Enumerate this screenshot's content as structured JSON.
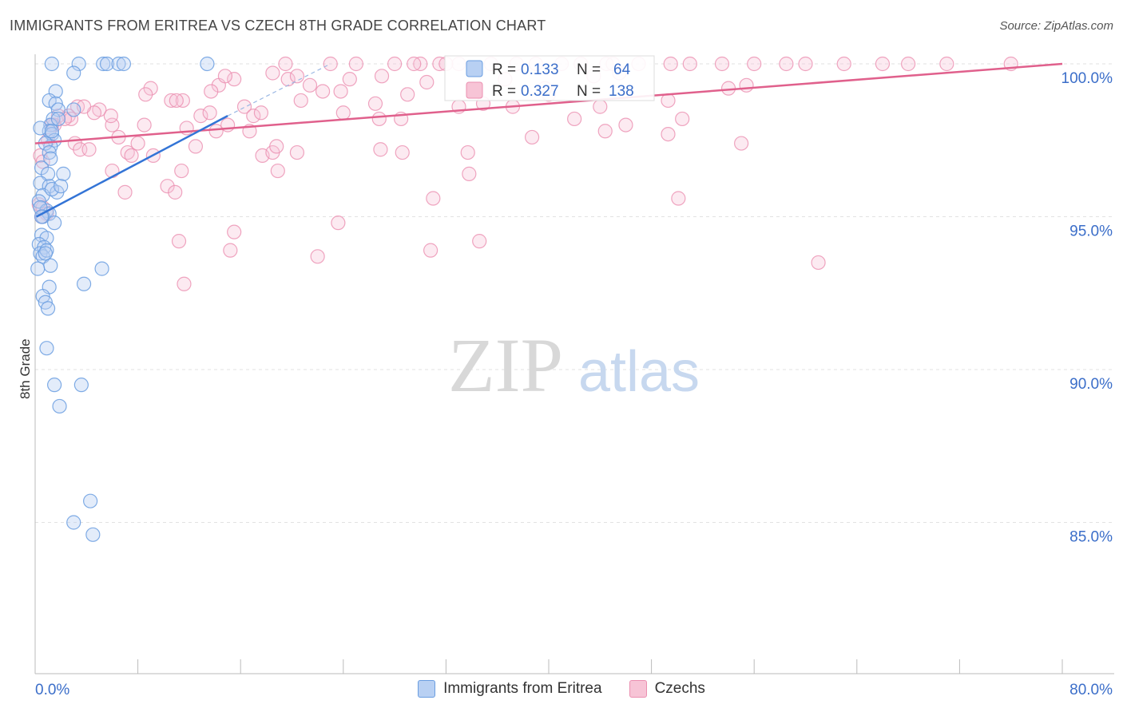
{
  "title": "IMMIGRANTS FROM ERITREA VS CZECH 8TH GRADE CORRELATION CHART",
  "source": "Source: ZipAtlas.com",
  "watermark": {
    "zip": "ZIP",
    "atlas": "atlas"
  },
  "colors": {
    "blue": "#6a9de0",
    "blue_line": "#3374d6",
    "pink": "#eb8fb0",
    "pink_line": "#e0608c",
    "axis_text": "#3b6ec9",
    "grid": "#e2e2e2"
  },
  "legend_box": {
    "rows": [
      {
        "r_label": "R =",
        "r_value": "0.133",
        "n_label": "N =",
        "n_value": "64"
      },
      {
        "r_label": "R =",
        "r_value": "0.327",
        "n_label": "N =",
        "n_value": "138"
      }
    ]
  },
  "chart_data": {
    "type": "scatter",
    "title": "IMMIGRANTS FROM ERITREA VS CZECH 8TH GRADE CORRELATION CHART",
    "xlabel": "",
    "ylabel": "8th Grade",
    "xlim": [
      0,
      80
    ],
    "ylim": [
      80.5,
      100.8
    ],
    "x_tick_labels": [
      "0.0%",
      "80.0%"
    ],
    "y_ticks": [
      100,
      95,
      90,
      85
    ],
    "y_tick_labels": [
      "100.0%",
      "95.0%",
      "90.0%",
      "85.0%"
    ],
    "grid": true,
    "legend_position": "bottom",
    "series": [
      {
        "name": "Immigrants from Eritrea",
        "color": "#6a9de0",
        "trend": {
          "x": [
            0.1,
            15.0
          ],
          "y": [
            95.0,
            98.3
          ],
          "dashed_to": [
            23.0,
            100.0
          ]
        },
        "points": [
          [
            1.3,
            100.0
          ],
          [
            3.4,
            100.0
          ],
          [
            5.3,
            100.0
          ],
          [
            5.6,
            100.0
          ],
          [
            6.5,
            100.0
          ],
          [
            6.9,
            100.0
          ],
          [
            13.4,
            100.0
          ],
          [
            3.0,
            99.7
          ],
          [
            1.6,
            99.1
          ],
          [
            1.1,
            98.8
          ],
          [
            1.6,
            98.7
          ],
          [
            1.8,
            98.5
          ],
          [
            3.0,
            98.5
          ],
          [
            1.4,
            98.2
          ],
          [
            1.2,
            98.0
          ],
          [
            1.1,
            97.8
          ],
          [
            1.3,
            97.7
          ],
          [
            1.5,
            97.5
          ],
          [
            1.2,
            97.3
          ],
          [
            0.8,
            97.4
          ],
          [
            1.1,
            97.1
          ],
          [
            1.2,
            96.9
          ],
          [
            0.5,
            96.6
          ],
          [
            2.2,
            96.4
          ],
          [
            1.0,
            96.4
          ],
          [
            0.4,
            96.1
          ],
          [
            1.1,
            96.0
          ],
          [
            1.7,
            95.8
          ],
          [
            0.6,
            95.7
          ],
          [
            1.3,
            95.9
          ],
          [
            0.3,
            95.5
          ],
          [
            0.9,
            95.2
          ],
          [
            1.1,
            95.1
          ],
          [
            0.6,
            95.0
          ],
          [
            0.4,
            95.3
          ],
          [
            1.5,
            94.8
          ],
          [
            0.5,
            94.4
          ],
          [
            0.9,
            94.3
          ],
          [
            0.3,
            94.1
          ],
          [
            0.7,
            94.0
          ],
          [
            0.4,
            93.8
          ],
          [
            0.6,
            93.7
          ],
          [
            0.9,
            93.9
          ],
          [
            1.2,
            93.4
          ],
          [
            0.2,
            93.3
          ],
          [
            5.2,
            93.3
          ],
          [
            1.1,
            92.7
          ],
          [
            3.8,
            92.8
          ],
          [
            0.6,
            92.4
          ],
          [
            0.8,
            92.2
          ],
          [
            1.0,
            92.0
          ],
          [
            0.9,
            90.7
          ],
          [
            1.5,
            89.5
          ],
          [
            3.6,
            89.5
          ],
          [
            1.9,
            88.8
          ],
          [
            4.3,
            85.7
          ],
          [
            3.0,
            85.0
          ],
          [
            4.5,
            84.6
          ],
          [
            0.4,
            97.9
          ],
          [
            1.8,
            98.2
          ],
          [
            0.5,
            95.0
          ],
          [
            1.3,
            97.8
          ],
          [
            0.8,
            93.8
          ],
          [
            2.0,
            96.0
          ]
        ]
      },
      {
        "name": "Czechs",
        "color": "#eb8fb0",
        "trend": {
          "x": [
            0.0,
            80.0
          ],
          "y": [
            97.4,
            100.0
          ]
        },
        "points": [
          [
            19.5,
            100.0
          ],
          [
            23.0,
            100.0
          ],
          [
            25.0,
            100.0
          ],
          [
            28.0,
            100.0
          ],
          [
            30.0,
            100.0
          ],
          [
            31.5,
            100.0
          ],
          [
            33.0,
            100.0
          ],
          [
            35.5,
            100.0
          ],
          [
            37.5,
            100.0
          ],
          [
            41.0,
            100.0
          ],
          [
            42.5,
            100.0
          ],
          [
            44.5,
            100.0
          ],
          [
            47.0,
            100.0
          ],
          [
            51.0,
            100.0
          ],
          [
            53.5,
            100.0
          ],
          [
            56.0,
            100.0
          ],
          [
            60.0,
            100.0
          ],
          [
            63.0,
            100.0
          ],
          [
            66.0,
            100.0
          ],
          [
            68.0,
            100.0
          ],
          [
            71.0,
            100.0
          ],
          [
            76.0,
            100.0
          ],
          [
            29.5,
            100.0
          ],
          [
            39.0,
            100.0
          ],
          [
            45.0,
            100.0
          ],
          [
            49.5,
            100.0
          ],
          [
            32.0,
            100.0
          ],
          [
            58.5,
            100.0
          ],
          [
            24.5,
            99.5
          ],
          [
            27.0,
            99.6
          ],
          [
            30.5,
            99.4
          ],
          [
            18.5,
            99.7
          ],
          [
            19.7,
            99.5
          ],
          [
            21.4,
            99.3
          ],
          [
            23.8,
            99.1
          ],
          [
            15.5,
            99.5
          ],
          [
            14.3,
            99.3
          ],
          [
            13.7,
            99.1
          ],
          [
            9.0,
            99.2
          ],
          [
            10.6,
            98.8
          ],
          [
            11.5,
            98.8
          ],
          [
            20.7,
            98.8
          ],
          [
            26.5,
            98.7
          ],
          [
            29.0,
            99.0
          ],
          [
            33.0,
            98.6
          ],
          [
            37.2,
            98.6
          ],
          [
            40.0,
            99.0
          ],
          [
            44.0,
            98.6
          ],
          [
            49.3,
            98.8
          ],
          [
            55.4,
            99.3
          ],
          [
            12.9,
            98.3
          ],
          [
            13.6,
            98.4
          ],
          [
            16.3,
            98.6
          ],
          [
            5.0,
            98.5
          ],
          [
            4.6,
            98.4
          ],
          [
            3.3,
            98.6
          ],
          [
            2.6,
            98.3
          ],
          [
            1.8,
            98.3
          ],
          [
            1.5,
            98.0
          ],
          [
            2.8,
            98.2
          ],
          [
            6.0,
            98.0
          ],
          [
            8.5,
            98.0
          ],
          [
            11.8,
            97.9
          ],
          [
            15.0,
            98.0
          ],
          [
            17.0,
            98.3
          ],
          [
            24.0,
            98.4
          ],
          [
            28.5,
            98.2
          ],
          [
            42.0,
            98.2
          ],
          [
            46.0,
            98.0
          ],
          [
            50.4,
            98.2
          ],
          [
            44.4,
            97.8
          ],
          [
            38.7,
            97.6
          ],
          [
            49.3,
            97.7
          ],
          [
            55.0,
            97.4
          ],
          [
            1.0,
            97.5
          ],
          [
            3.1,
            97.4
          ],
          [
            3.5,
            97.2
          ],
          [
            4.2,
            97.2
          ],
          [
            6.5,
            97.6
          ],
          [
            7.2,
            97.1
          ],
          [
            8.0,
            97.4
          ],
          [
            7.5,
            97.0
          ],
          [
            9.2,
            97.0
          ],
          [
            12.5,
            97.3
          ],
          [
            17.7,
            97.0
          ],
          [
            18.5,
            97.1
          ],
          [
            18.8,
            97.3
          ],
          [
            20.4,
            97.1
          ],
          [
            26.9,
            97.2
          ],
          [
            28.6,
            97.1
          ],
          [
            33.7,
            97.1
          ],
          [
            14.1,
            97.8
          ],
          [
            0.4,
            97.0
          ],
          [
            0.6,
            96.8
          ],
          [
            6.0,
            96.5
          ],
          [
            11.4,
            96.5
          ],
          [
            18.9,
            96.5
          ],
          [
            33.8,
            96.4
          ],
          [
            10.3,
            96.0
          ],
          [
            10.9,
            95.8
          ],
          [
            7.0,
            95.8
          ],
          [
            31.0,
            95.6
          ],
          [
            50.1,
            95.6
          ],
          [
            0.3,
            95.4
          ],
          [
            0.6,
            95.3
          ],
          [
            0.9,
            95.1
          ],
          [
            0.5,
            95.0
          ],
          [
            23.6,
            94.8
          ],
          [
            15.5,
            94.5
          ],
          [
            11.2,
            94.2
          ],
          [
            34.6,
            94.2
          ],
          [
            15.2,
            93.9
          ],
          [
            22.0,
            93.7
          ],
          [
            30.8,
            93.9
          ],
          [
            61.0,
            93.5
          ],
          [
            11.6,
            92.8
          ],
          [
            1.3,
            98.0
          ],
          [
            2.3,
            98.2
          ],
          [
            17.6,
            98.4
          ],
          [
            16.7,
            97.8
          ],
          [
            22.4,
            99.1
          ],
          [
            34.9,
            98.7
          ],
          [
            20.4,
            99.6
          ],
          [
            36.6,
            99.5
          ],
          [
            39.7,
            99.2
          ],
          [
            5.9,
            98.3
          ],
          [
            45.5,
            99.7
          ],
          [
            26.8,
            98.2
          ],
          [
            8.6,
            99.0
          ],
          [
            11.0,
            98.8
          ],
          [
            43.5,
            99.6
          ],
          [
            54.0,
            99.2
          ],
          [
            14.8,
            99.6
          ],
          [
            3.8,
            98.6
          ]
        ]
      }
    ]
  },
  "legend_bottom": [
    {
      "label": "Immigrants from Eritrea",
      "color": "#6a9de0"
    },
    {
      "label": "Czechs",
      "color": "#eb8fb0"
    }
  ]
}
